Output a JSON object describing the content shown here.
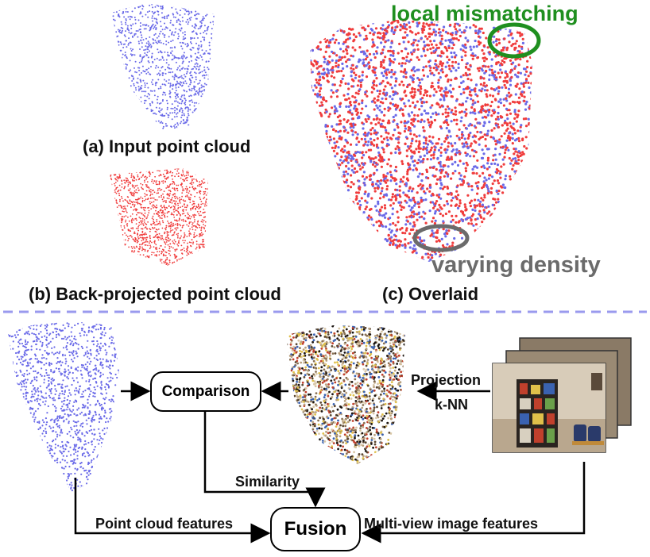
{
  "captions": {
    "input_cloud": "(a) Input point cloud",
    "backprojected_cloud": "(b) Back-projected point cloud",
    "overlaid": "(c) Overlaid"
  },
  "annotations": {
    "local_mismatching": "local mismatching",
    "varying_density": "varying density"
  },
  "pipeline": {
    "comparison": "Comparison",
    "fusion": "Fusion",
    "projection": "Projection",
    "knn": "k-NN",
    "similarity": "Similarity",
    "point_cloud_features": "Point cloud features",
    "multiview_image_features": "Multi-view image features"
  },
  "colors": {
    "input_points": "#6a6ae8",
    "backprojected_points": "#f03c3c",
    "mismatch_ring": "#1f8f1f",
    "density_ring": "#6b6b6b",
    "divider": "#9a9aee"
  }
}
